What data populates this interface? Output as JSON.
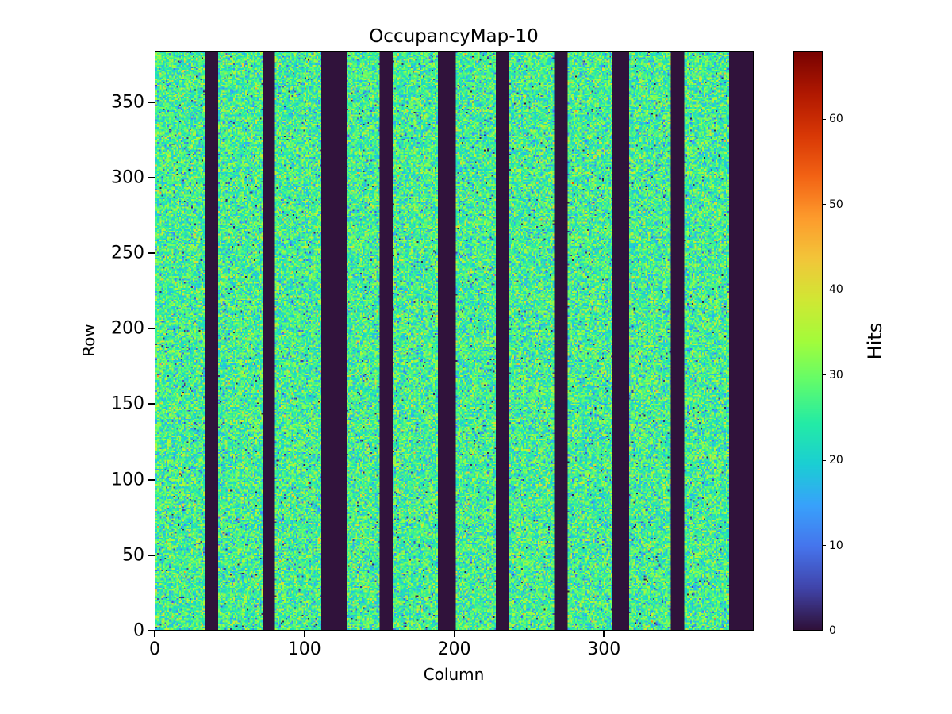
{
  "chart_data": {
    "type": "heatmap",
    "title": "OccupancyMap-10",
    "xlabel": "Column",
    "ylabel": "Row",
    "colorbar_label": "Hits",
    "n_cols": 400,
    "n_rows": 384,
    "x_range": [
      0,
      400
    ],
    "y_range": [
      0,
      384
    ],
    "value_range": [
      0,
      68
    ],
    "x_ticks": [
      0,
      100,
      200,
      300
    ],
    "y_ticks": [
      0,
      50,
      100,
      150,
      200,
      250,
      300,
      350
    ],
    "colorbar_ticks": [
      0,
      10,
      20,
      30,
      40,
      50,
      60
    ],
    "noise": {
      "mean": 26,
      "std": 6.5,
      "low_outlier_fraction": 0.02
    },
    "dead_column_bands": [
      [
        33,
        42
      ],
      [
        72,
        80
      ],
      [
        111,
        128
      ],
      [
        150,
        159
      ],
      [
        189,
        201
      ],
      [
        228,
        237
      ],
      [
        267,
        276
      ],
      [
        306,
        317
      ],
      [
        345,
        354
      ],
      [
        384,
        400
      ]
    ],
    "colormap": {
      "name": "turbo",
      "stops": [
        "#30123b",
        "#4145ab",
        "#4675ed",
        "#39a2fc",
        "#1bcfd4",
        "#24eca6",
        "#61fc6c",
        "#a4fc3b",
        "#d1e834",
        "#f3c63a",
        "#fe9b2d",
        "#f36315",
        "#d93806",
        "#b11901",
        "#7a0402"
      ]
    },
    "grid": false,
    "background": "#ffffff"
  }
}
